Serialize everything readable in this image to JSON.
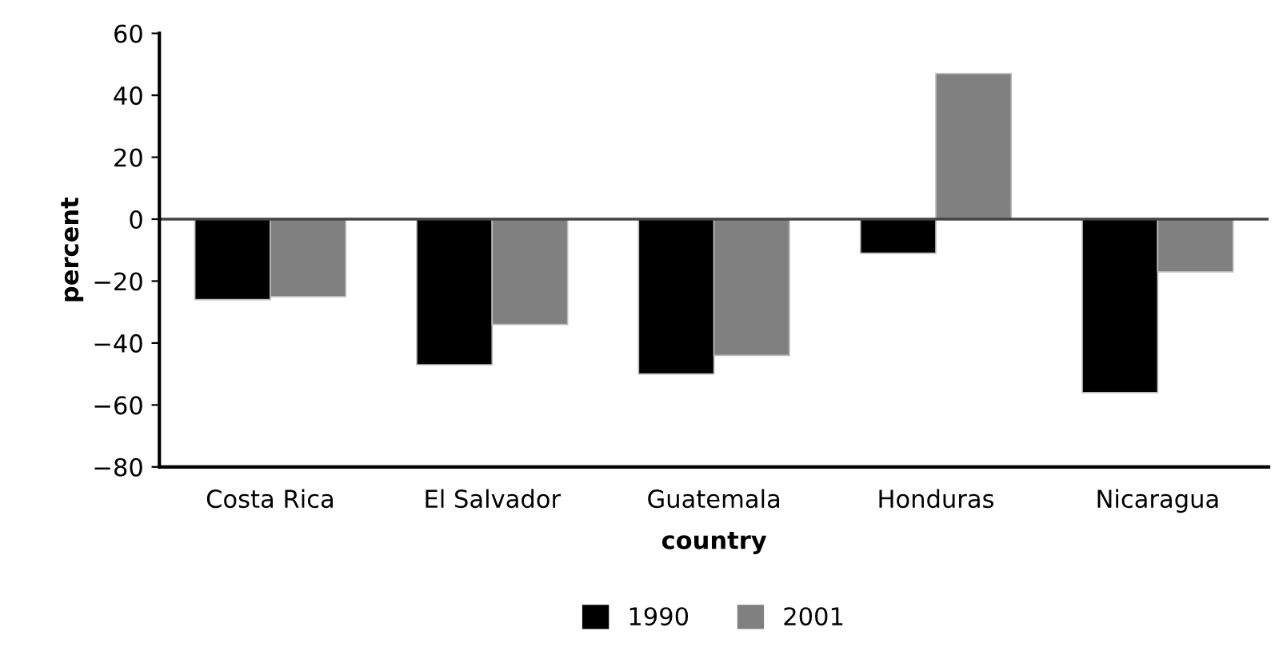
{
  "chart_data": {
    "type": "bar",
    "xlabel": "country",
    "ylabel": "percent",
    "categories": [
      "Costa Rica",
      "El Salvador",
      "Guatemala",
      "Honduras",
      "Nicaragua"
    ],
    "series": [
      {
        "name": "1990",
        "color": "#000000",
        "values": [
          -26,
          -47,
          -50,
          -11,
          -56
        ]
      },
      {
        "name": "2001",
        "color": "#808080",
        "values": [
          -25,
          -34,
          -44,
          47,
          -17
        ]
      }
    ],
    "ylim": [
      -80,
      60
    ],
    "yticks": [
      {
        "value": -80,
        "label": "−80"
      },
      {
        "value": -60,
        "label": "−60"
      },
      {
        "value": -40,
        "label": "−40"
      },
      {
        "value": -20,
        "label": "−20"
      },
      0,
      20,
      40,
      60
    ],
    "ref_lines": [
      {
        "axis": "y",
        "value": 0,
        "color": "#444444"
      }
    ],
    "grid": false,
    "legend": "bottom"
  }
}
